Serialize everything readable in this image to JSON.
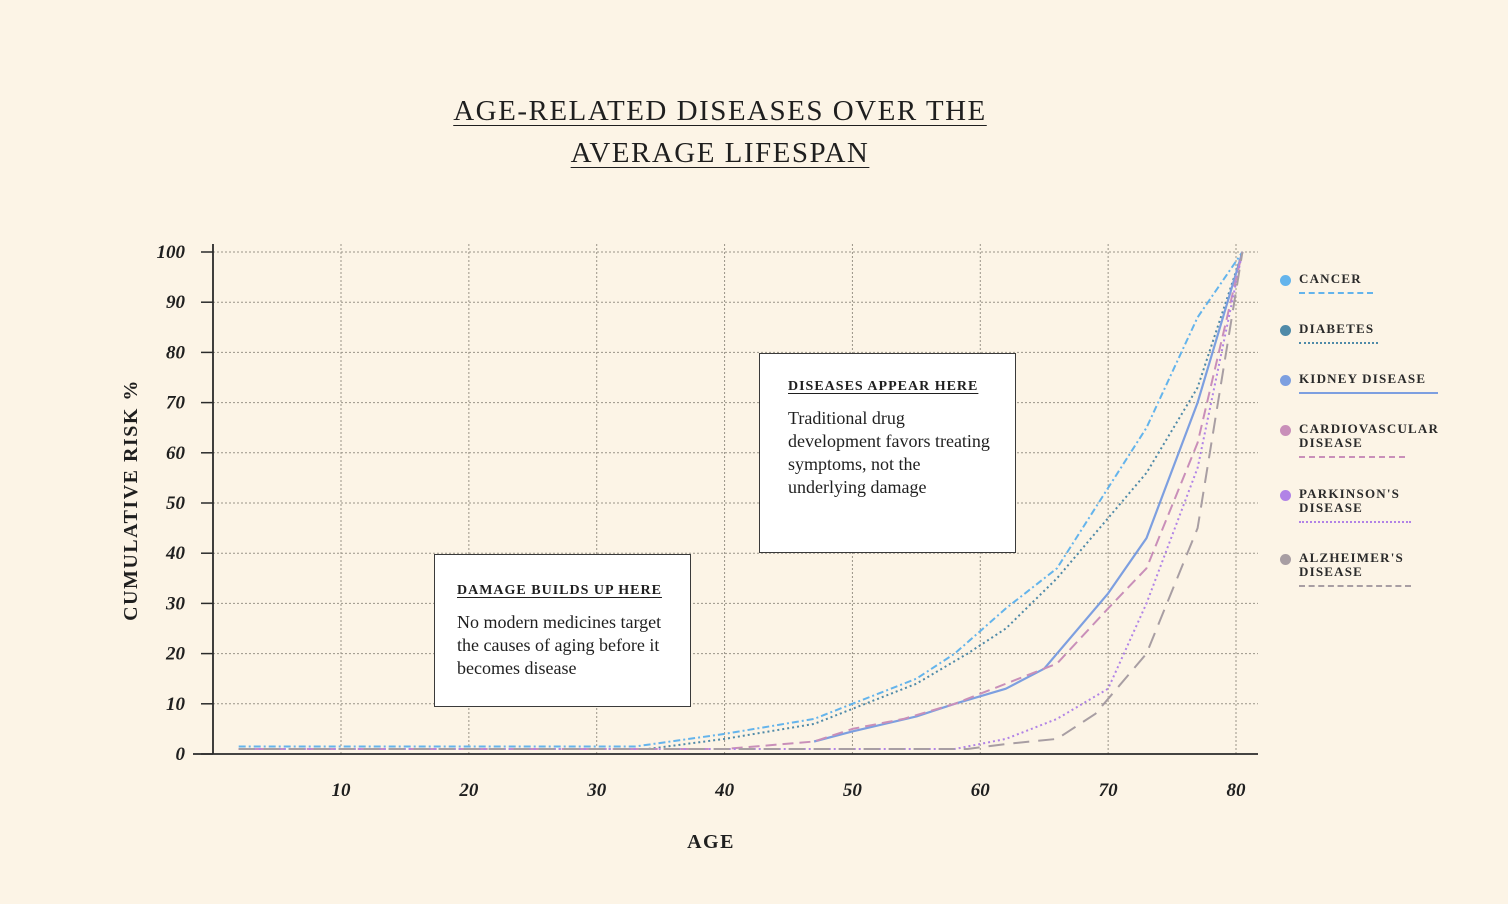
{
  "chart_data": {
    "type": "line",
    "title_lines": [
      "AGE-RELATED DISEASES OVER THE",
      "AVERAGE LIFESPAN"
    ],
    "xlabel": "AGE",
    "ylabel": "CUMULATIVE RISK %",
    "xlim": [
      0,
      82
    ],
    "ylim": [
      0,
      100
    ],
    "x_ticks": [
      10,
      20,
      30,
      40,
      50,
      60,
      70,
      80
    ],
    "y_ticks": [
      0,
      10,
      20,
      30,
      40,
      50,
      60,
      70,
      80,
      90,
      100
    ],
    "grid": true,
    "legend_position": "right",
    "series": [
      {
        "name": "CANCER",
        "label_lines": [
          "CANCER"
        ],
        "color": "#64b4ec",
        "style": "dashdot",
        "x": [
          2,
          33,
          40,
          47,
          50,
          55,
          58,
          62,
          66,
          70,
          73,
          77,
          80.5
        ],
        "y": [
          1.5,
          1.5,
          4,
          7,
          10,
          15,
          20,
          29,
          37,
          53,
          65,
          87,
          100
        ]
      },
      {
        "name": "DIABETES",
        "label_lines": [
          "DIABETES"
        ],
        "color": "#4f8aa8",
        "style": "dotted",
        "x": [
          2,
          34,
          40,
          47,
          55,
          59,
          62,
          66,
          70,
          73,
          77,
          80.5
        ],
        "y": [
          1,
          1,
          3,
          6,
          14,
          20,
          25,
          35,
          47,
          56,
          73,
          100
        ]
      },
      {
        "name": "KIDNEY DISEASE",
        "label_lines": [
          "KIDNEY DISEASE"
        ],
        "color": "#7d9fe0",
        "style": "solid",
        "x": [
          47,
          50,
          55,
          58,
          62,
          65,
          70,
          73,
          77,
          80.5
        ],
        "y": [
          2.5,
          4.5,
          7.5,
          10,
          13,
          17,
          32,
          43,
          70,
          100
        ]
      },
      {
        "name": "CARDIOVASCULAR DISEASE",
        "label_lines": [
          "CARDIOVASCULAR",
          "DISEASE"
        ],
        "color": "#c98fb9",
        "style": "dashed",
        "x": [
          2,
          40,
          47,
          50,
          54,
          58,
          62,
          66,
          70,
          73,
          77,
          80.5
        ],
        "y": [
          1,
          1,
          2.5,
          5,
          7,
          10,
          14,
          18,
          29,
          37,
          62,
          100
        ]
      },
      {
        "name": "PARKINSON'S DISEASE",
        "label_lines": [
          "PARKINSON'S",
          "DISEASE"
        ],
        "color": "#b183e6",
        "style": "dotted",
        "x": [
          2,
          58,
          62,
          66,
          70,
          73,
          77,
          80.5
        ],
        "y": [
          1,
          1,
          3,
          7,
          13,
          30,
          57,
          100
        ]
      },
      {
        "name": "ALZHEIMER'S DISEASE",
        "label_lines": [
          "ALZHEIMER'S",
          "DISEASE"
        ],
        "color": "#a89ea3",
        "style": "longdash",
        "x": [
          2,
          47,
          59,
          62,
          66,
          69,
          73,
          77,
          80.5
        ],
        "y": [
          1,
          1,
          1,
          2,
          3,
          8,
          20,
          45,
          100
        ]
      }
    ]
  },
  "annotations": {
    "damage": {
      "title": "DAMAGE BUILDS UP HERE",
      "body": "No modern medicines target the causes of aging before it becomes disease"
    },
    "diseases": {
      "title": "DISEASES APPEAR HERE",
      "body": "Traditional drug development favors treating symptoms, not the underlying damage"
    }
  }
}
